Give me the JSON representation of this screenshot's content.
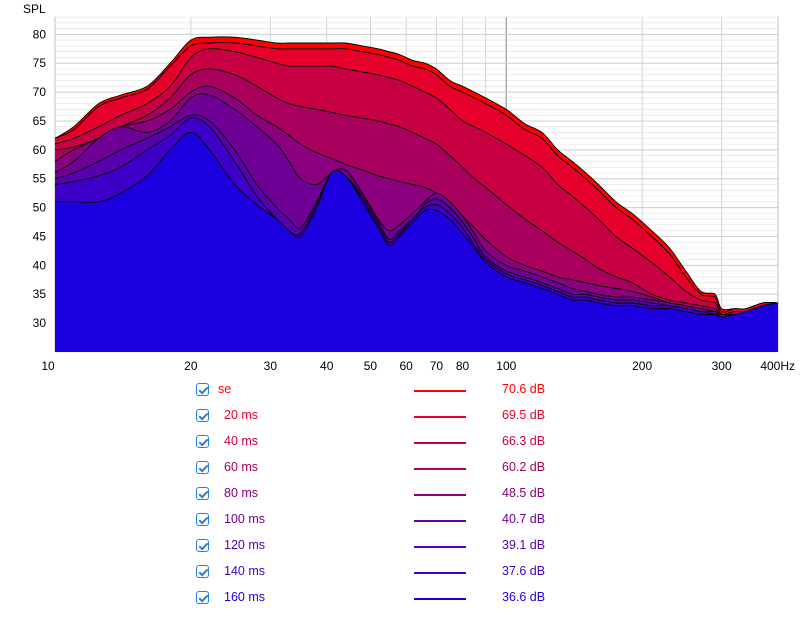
{
  "chart_data": {
    "type": "area",
    "title": "",
    "ylabel": "SPL",
    "xlabel": "",
    "xscale": "log",
    "xlim": [
      10,
      400
    ],
    "ylim": [
      25,
      83
    ],
    "y_ticks": [
      30,
      35,
      40,
      45,
      50,
      55,
      60,
      65,
      70,
      75,
      80
    ],
    "x_ticks": [
      {
        "value": 10,
        "label": "10"
      },
      {
        "value": 20,
        "label": "20"
      },
      {
        "value": 30,
        "label": "30"
      },
      {
        "value": 40,
        "label": "40"
      },
      {
        "value": 50,
        "label": "50"
      },
      {
        "value": 60,
        "label": "60"
      },
      {
        "value": 70,
        "label": "70"
      },
      {
        "value": 80,
        "label": "80"
      },
      {
        "value": 100,
        "label": "100"
      },
      {
        "value": 200,
        "label": "200"
      },
      {
        "value": 300,
        "label": "300"
      },
      {
        "value": 400,
        "label": "400Hz"
      }
    ],
    "x": [
      10,
      11,
      12.5,
      14,
      16,
      18,
      20,
      22,
      25,
      28,
      31,
      33,
      35,
      38,
      41,
      44,
      48,
      52,
      55,
      58,
      62,
      66,
      70,
      75,
      80,
      85,
      90,
      100,
      110,
      120,
      130,
      140,
      150,
      160,
      175,
      190,
      210,
      230,
      250,
      270,
      290,
      300,
      320,
      340,
      370,
      400
    ],
    "series": [
      {
        "name": "se",
        "value": "70.6 dB",
        "color": "#ff0000",
        "values": [
          62,
          64,
          68,
          69.5,
          71,
          75,
          79,
          79.5,
          79.5,
          79,
          78.5,
          78.5,
          78.5,
          78.5,
          78.5,
          78.5,
          78,
          77.5,
          77,
          76.5,
          75.5,
          75,
          74,
          72,
          71,
          70,
          69,
          67,
          64.5,
          63,
          60,
          58,
          56,
          54,
          51,
          49,
          46,
          43,
          39,
          35.5,
          35,
          32.5,
          32.5,
          32.5,
          33.5,
          33.5
        ]
      },
      {
        "name": "20 ms",
        "value": "69.5 dB",
        "color": "#e6002c",
        "values": [
          62,
          63.5,
          67.5,
          69,
          70.5,
          74.5,
          78,
          78.5,
          78.5,
          78,
          77.5,
          77.5,
          77.5,
          77.5,
          77.5,
          77.5,
          77,
          76.5,
          76,
          75.5,
          74.5,
          74,
          73,
          71,
          70,
          69,
          68,
          66,
          63.5,
          62,
          59,
          57,
          55,
          53,
          50,
          48,
          45,
          42,
          38,
          35,
          34.5,
          32,
          32.5,
          32.5,
          33.5,
          33.5
        ]
      },
      {
        "name": "40 ms",
        "value": "66.3 dB",
        "color": "#c60042",
        "values": [
          61,
          62,
          64,
          66,
          68,
          71,
          76,
          77.5,
          77,
          76,
          75,
          74.5,
          74.5,
          74.5,
          74.5,
          74,
          73.5,
          73,
          72.5,
          72,
          71,
          70,
          69,
          67,
          65,
          64,
          63,
          61,
          59,
          57,
          54,
          52,
          50,
          48,
          45,
          43,
          40.5,
          38,
          35.5,
          34,
          33.5,
          31.5,
          32,
          32,
          33,
          33.5
        ]
      },
      {
        "name": "60 ms",
        "value": "60.2 dB",
        "color": "#a8005c",
        "values": [
          60,
          60.5,
          62,
          64,
          66,
          69,
          73,
          74,
          73,
          71,
          69,
          68,
          67.5,
          67,
          66.5,
          66,
          65.5,
          65,
          64.5,
          64,
          63,
          62,
          61,
          59,
          57,
          55,
          53.5,
          50.5,
          48,
          46,
          44,
          42.5,
          41,
          39.5,
          38,
          37,
          35,
          34,
          33.5,
          33,
          32.5,
          31.5,
          32,
          32,
          33,
          33.5
        ]
      },
      {
        "name": "80 ms",
        "value": "48.5 dB",
        "color": "#8a007e",
        "values": [
          58,
          60,
          62,
          64,
          65,
          67,
          70,
          71,
          69,
          66,
          64,
          62.5,
          61,
          59.5,
          58.5,
          57.5,
          56.5,
          55.5,
          55,
          54.5,
          54,
          53.5,
          52.5,
          50.5,
          48.5,
          46.5,
          44.5,
          41.5,
          40,
          39,
          38,
          37.5,
          37,
          36.5,
          36,
          35.5,
          34.5,
          33.5,
          33,
          32.5,
          32,
          31.5,
          31.5,
          32,
          33,
          33.5
        ]
      },
      {
        "name": "100 ms",
        "value": "40.7 dB",
        "color": "#6f0096",
        "values": [
          56,
          58,
          62,
          64,
          63,
          65,
          69,
          69.5,
          67,
          64,
          61,
          58,
          55,
          54,
          56,
          56.5,
          52.5,
          48,
          46,
          47,
          49,
          51,
          52.5,
          51,
          48.5,
          45.5,
          42.5,
          40,
          39,
          38,
          37,
          36,
          35.5,
          35,
          34.5,
          34.5,
          34,
          33.5,
          33,
          32.5,
          32,
          31.5,
          31.5,
          32,
          33,
          33.5
        ]
      },
      {
        "name": "120 ms",
        "value": "39.1 dB",
        "color": "#5800ad",
        "values": [
          55,
          56,
          58,
          60,
          62,
          64,
          66,
          65,
          60,
          54,
          50,
          48,
          46.5,
          51,
          56,
          55.5,
          52,
          47.5,
          44.5,
          46,
          48,
          50.5,
          51.5,
          50,
          47.5,
          44.5,
          41.5,
          39,
          38,
          37,
          36,
          35,
          35,
          34.5,
          34,
          34,
          33.5,
          33,
          32.5,
          32,
          32,
          31,
          31.5,
          32,
          33,
          33.5
        ]
      },
      {
        "name": "140 ms",
        "value": "37.6 dB",
        "color": "#3e00c8",
        "values": [
          54,
          54.5,
          55.5,
          57,
          60,
          62.5,
          65.5,
          64,
          58,
          52,
          48,
          46,
          45.5,
          50.5,
          56,
          55.5,
          51.5,
          47,
          44,
          45.5,
          48,
          50,
          50.5,
          49,
          46.5,
          43.5,
          41,
          38.5,
          37.5,
          36.5,
          35.5,
          34.5,
          34.5,
          34,
          33.5,
          33.5,
          33,
          33,
          32.5,
          32,
          31.5,
          31,
          31.5,
          32,
          33,
          33.5
        ]
      },
      {
        "name": "160 ms",
        "value": "36.6 dB",
        "color": "#1c00e0",
        "values": [
          51,
          51,
          51,
          52.5,
          55.5,
          60,
          63,
          60,
          54,
          50.5,
          48,
          46,
          45,
          50,
          56,
          55.5,
          51,
          46.5,
          43.5,
          45,
          47.5,
          49.5,
          49.5,
          48,
          45.5,
          43,
          40.5,
          38,
          37,
          36,
          35,
          34,
          34,
          33.5,
          33,
          33,
          32.5,
          32.5,
          32,
          31.5,
          31.5,
          31,
          31.5,
          32,
          33,
          33.5
        ]
      }
    ]
  }
}
